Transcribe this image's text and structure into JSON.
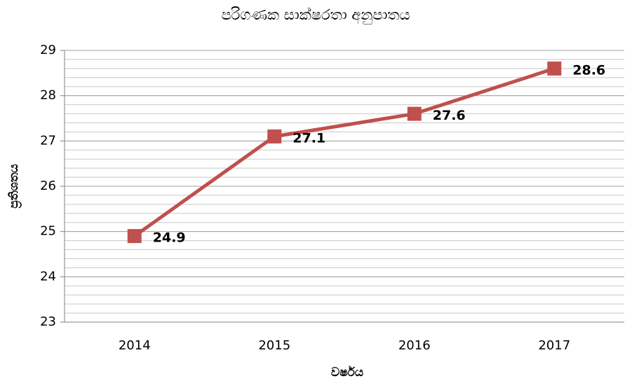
{
  "chart_data": {
    "type": "line",
    "title": "පරිගණක සාක්ෂරතා අනුපාතය",
    "x_label": "වර්ෂය",
    "y_label": "ප්‍රතිශතය",
    "categories": [
      "2014",
      "2015",
      "2016",
      "2017"
    ],
    "series": [
      {
        "name": "පරිගණක සාක්ෂරතා අනුපාතය",
        "color": "#c0504d",
        "values": [
          24.9,
          27.1,
          27.6,
          28.6
        ]
      }
    ],
    "ylim": [
      23,
      29
    ],
    "yticks": [
      23,
      24,
      25,
      26,
      27,
      28,
      29
    ],
    "minor_grid_step": 0.2,
    "grid": true
  }
}
